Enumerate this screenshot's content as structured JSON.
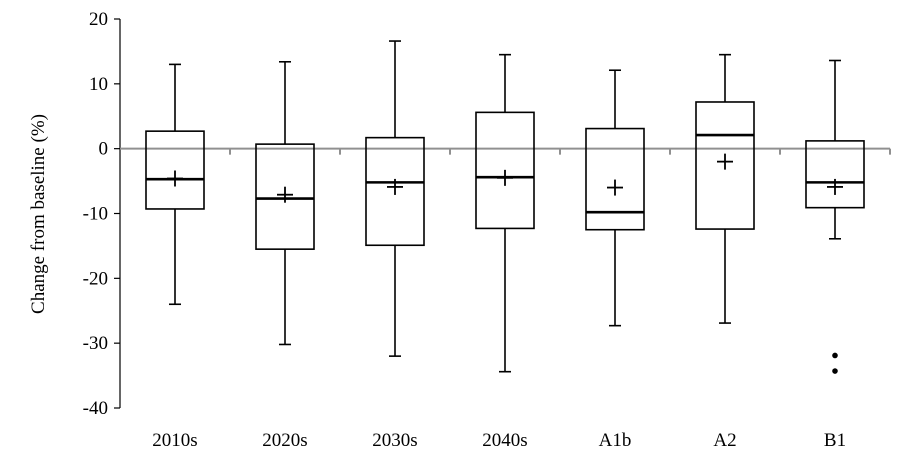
{
  "chart_data": {
    "type": "box",
    "title": "",
    "xlabel": "",
    "ylabel": "Change from baseline (%)",
    "ylim": [
      -40,
      20
    ],
    "yticks": [
      -40,
      -30,
      -20,
      -10,
      0,
      10,
      20
    ],
    "ytick_labels": [
      "-40",
      "-30",
      "-20",
      "-10",
      "0",
      "10",
      "20"
    ],
    "grid": false,
    "legend": "none",
    "categories": [
      "2010s",
      "2020s",
      "2030s",
      "2040s",
      "A1b",
      "A2",
      "B1"
    ],
    "boxes": [
      {
        "category": "2010s",
        "whisker_low": -24.0,
        "q1": -9.3,
        "median": -4.7,
        "q3": 2.7,
        "whisker_high": 13.0,
        "mean": -4.6,
        "outliers": []
      },
      {
        "category": "2020s",
        "whisker_low": -30.2,
        "q1": -15.5,
        "median": -7.7,
        "q3": 0.7,
        "whisker_high": 13.4,
        "mean": -7.1,
        "outliers": []
      },
      {
        "category": "2030s",
        "whisker_low": -32.0,
        "q1": -14.9,
        "median": -5.2,
        "q3": 1.7,
        "whisker_high": 16.6,
        "mean": -5.9,
        "outliers": []
      },
      {
        "category": "2040s",
        "whisker_low": -34.4,
        "q1": -12.3,
        "median": -4.4,
        "q3": 5.6,
        "whisker_high": 14.5,
        "mean": -4.5,
        "outliers": []
      },
      {
        "category": "A1b",
        "whisker_low": -27.3,
        "q1": -12.5,
        "median": -9.8,
        "q3": 3.1,
        "whisker_high": 12.1,
        "mean": -6.0,
        "outliers": []
      },
      {
        "category": "A2",
        "whisker_low": -26.9,
        "q1": -12.4,
        "median": 2.1,
        "q3": 7.2,
        "whisker_high": 14.5,
        "mean": -2.0,
        "outliers": []
      },
      {
        "category": "B1",
        "whisker_low": -13.9,
        "q1": -9.1,
        "median": -5.2,
        "q3": 1.2,
        "whisker_high": 13.6,
        "mean": -5.9,
        "outliers": [
          -31.9,
          -34.3
        ]
      }
    ],
    "zero_line": 0,
    "colors": {
      "axis": "#000000",
      "zero_line": "#909090",
      "box_fill": "#ffffff",
      "box_stroke": "#000000"
    }
  }
}
